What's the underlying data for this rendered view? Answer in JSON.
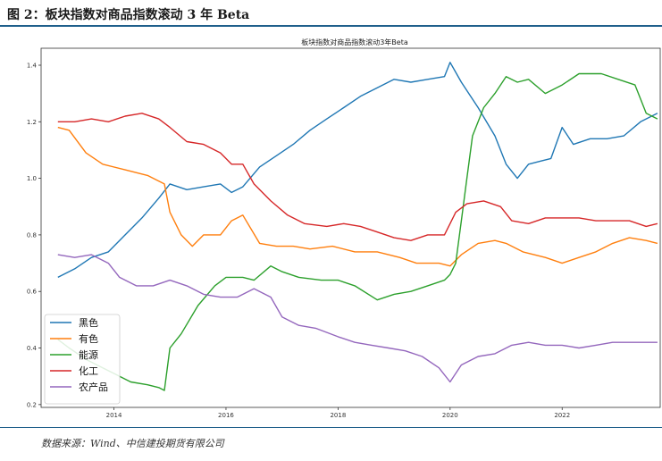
{
  "figure": {
    "title": "图 2：板块指数对商品指数滚动 3 年 Beta",
    "source": "数据来源：Wind、中信建投期货有限公司"
  },
  "chart_data": {
    "type": "line",
    "title": "板块指数对商品指数滚动3年Beta",
    "xlabel": "",
    "ylabel": "",
    "xlim": [
      2012.7,
      2023.75
    ],
    "ylim": [
      0.19,
      1.46
    ],
    "xticks": [
      2014,
      2016,
      2018,
      2020,
      2022
    ],
    "xtick_labels": [
      "2014",
      "2016",
      "2018",
      "2020",
      "2022"
    ],
    "yticks": [
      0.2,
      0.4,
      0.6,
      0.8,
      1.0,
      1.2,
      1.4
    ],
    "ytick_labels": [
      "0.2",
      "0.4",
      "0.6",
      "0.8",
      "1.0",
      "1.2",
      "1.4"
    ],
    "legend_position": "bottom-left",
    "grid": false,
    "series": [
      {
        "name": "黑色",
        "color": "#1f77b4",
        "x": [
          2013.0,
          2013.3,
          2013.6,
          2013.9,
          2014.2,
          2014.5,
          2014.8,
          2015.0,
          2015.3,
          2015.6,
          2015.9,
          2016.1,
          2016.3,
          2016.6,
          2016.9,
          2017.2,
          2017.5,
          2017.8,
          2018.1,
          2018.4,
          2018.7,
          2019.0,
          2019.3,
          2019.6,
          2019.9,
          2020.0,
          2020.2,
          2020.5,
          2020.8,
          2021.0,
          2021.2,
          2021.4,
          2021.6,
          2021.8,
          2022.0,
          2022.2,
          2022.5,
          2022.8,
          2023.1,
          2023.4,
          2023.7
        ],
        "y": [
          0.65,
          0.68,
          0.72,
          0.74,
          0.8,
          0.86,
          0.93,
          0.98,
          0.96,
          0.97,
          0.98,
          0.95,
          0.97,
          1.04,
          1.08,
          1.12,
          1.17,
          1.21,
          1.25,
          1.29,
          1.32,
          1.35,
          1.34,
          1.35,
          1.36,
          1.41,
          1.34,
          1.25,
          1.15,
          1.05,
          1.0,
          1.05,
          1.06,
          1.07,
          1.18,
          1.12,
          1.14,
          1.14,
          1.15,
          1.2,
          1.23
        ]
      },
      {
        "name": "有色",
        "color": "#ff7f0e",
        "x": [
          2013.0,
          2013.2,
          2013.5,
          2013.8,
          2014.2,
          2014.6,
          2014.9,
          2015.0,
          2015.2,
          2015.4,
          2015.6,
          2015.9,
          2016.1,
          2016.3,
          2016.6,
          2016.9,
          2017.2,
          2017.5,
          2017.9,
          2018.3,
          2018.7,
          2019.1,
          2019.4,
          2019.8,
          2020.0,
          2020.2,
          2020.5,
          2020.8,
          2021.0,
          2021.3,
          2021.7,
          2022.0,
          2022.3,
          2022.6,
          2022.9,
          2023.2,
          2023.5,
          2023.7
        ],
        "y": [
          1.18,
          1.17,
          1.09,
          1.05,
          1.03,
          1.01,
          0.98,
          0.88,
          0.8,
          0.76,
          0.8,
          0.8,
          0.85,
          0.87,
          0.77,
          0.76,
          0.76,
          0.75,
          0.76,
          0.74,
          0.74,
          0.72,
          0.7,
          0.7,
          0.69,
          0.73,
          0.77,
          0.78,
          0.77,
          0.74,
          0.72,
          0.7,
          0.72,
          0.74,
          0.77,
          0.79,
          0.78,
          0.77
        ]
      },
      {
        "name": "能源",
        "color": "#2ca02c",
        "x": [
          2013.0,
          2013.2,
          2013.5,
          2013.8,
          2014.0,
          2014.3,
          2014.6,
          2014.8,
          2014.9,
          2015.0,
          2015.2,
          2015.5,
          2015.8,
          2016.0,
          2016.3,
          2016.5,
          2016.8,
          2017.0,
          2017.3,
          2017.7,
          2018.0,
          2018.3,
          2018.7,
          2019.0,
          2019.3,
          2019.6,
          2019.9,
          2020.0,
          2020.1,
          2020.2,
          2020.3,
          2020.4,
          2020.6,
          2020.8,
          2021.0,
          2021.2,
          2021.4,
          2021.7,
          2022.0,
          2022.3,
          2022.7,
          2023.0,
          2023.3,
          2023.5,
          2023.7
        ],
        "y": [
          0.43,
          0.4,
          0.36,
          0.33,
          0.31,
          0.28,
          0.27,
          0.26,
          0.25,
          0.4,
          0.45,
          0.55,
          0.62,
          0.65,
          0.65,
          0.64,
          0.69,
          0.67,
          0.65,
          0.64,
          0.64,
          0.62,
          0.57,
          0.59,
          0.6,
          0.62,
          0.64,
          0.66,
          0.7,
          0.85,
          1.0,
          1.15,
          1.25,
          1.3,
          1.36,
          1.34,
          1.35,
          1.3,
          1.33,
          1.37,
          1.37,
          1.35,
          1.33,
          1.23,
          1.21
        ]
      },
      {
        "name": "化工",
        "color": "#d62728",
        "x": [
          2013.0,
          2013.3,
          2013.6,
          2013.9,
          2014.2,
          2014.5,
          2014.8,
          2015.0,
          2015.3,
          2015.6,
          2015.9,
          2016.1,
          2016.3,
          2016.5,
          2016.8,
          2017.1,
          2017.4,
          2017.8,
          2018.1,
          2018.4,
          2018.7,
          2019.0,
          2019.3,
          2019.6,
          2019.9,
          2020.0,
          2020.1,
          2020.3,
          2020.6,
          2020.9,
          2021.1,
          2021.4,
          2021.7,
          2022.0,
          2022.3,
          2022.6,
          2022.9,
          2023.2,
          2023.5,
          2023.7
        ],
        "y": [
          1.2,
          1.2,
          1.21,
          1.2,
          1.22,
          1.23,
          1.21,
          1.18,
          1.13,
          1.12,
          1.09,
          1.05,
          1.05,
          0.98,
          0.92,
          0.87,
          0.84,
          0.83,
          0.84,
          0.83,
          0.81,
          0.79,
          0.78,
          0.8,
          0.8,
          0.84,
          0.88,
          0.91,
          0.92,
          0.9,
          0.85,
          0.84,
          0.86,
          0.86,
          0.86,
          0.85,
          0.85,
          0.85,
          0.83,
          0.84
        ]
      },
      {
        "name": "农产品",
        "color": "#9467bd",
        "x": [
          2013.0,
          2013.3,
          2013.6,
          2013.9,
          2014.1,
          2014.4,
          2014.7,
          2015.0,
          2015.3,
          2015.6,
          2015.9,
          2016.2,
          2016.5,
          2016.8,
          2017.0,
          2017.3,
          2017.6,
          2018.0,
          2018.3,
          2018.6,
          2018.9,
          2019.2,
          2019.5,
          2019.8,
          2020.0,
          2020.2,
          2020.5,
          2020.8,
          2021.1,
          2021.4,
          2021.7,
          2022.0,
          2022.3,
          2022.6,
          2022.9,
          2023.2,
          2023.5,
          2023.7
        ],
        "y": [
          0.73,
          0.72,
          0.73,
          0.7,
          0.65,
          0.62,
          0.62,
          0.64,
          0.62,
          0.59,
          0.58,
          0.58,
          0.61,
          0.58,
          0.51,
          0.48,
          0.47,
          0.44,
          0.42,
          0.41,
          0.4,
          0.39,
          0.37,
          0.33,
          0.28,
          0.34,
          0.37,
          0.38,
          0.41,
          0.42,
          0.41,
          0.41,
          0.4,
          0.41,
          0.42,
          0.42,
          0.42,
          0.42
        ]
      }
    ]
  }
}
